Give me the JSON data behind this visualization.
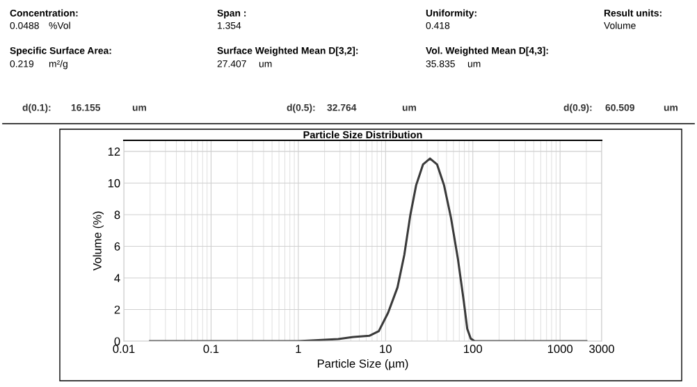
{
  "chart_data": {
    "type": "line",
    "title": "Particle Size Distribution",
    "xlabel": "Particle Size (µm)",
    "ylabel": "Volume (%)",
    "log": "x",
    "xlim": [
      0.01,
      3000
    ],
    "ylim": [
      0,
      12.7
    ],
    "xticks": [
      0.01,
      0.1,
      1,
      10,
      100,
      1000,
      3000
    ],
    "yticks": [
      0,
      2,
      4,
      6,
      8,
      10,
      12
    ],
    "grid": true,
    "marker": "none",
    "line_style": "solid",
    "series": [
      {
        "color": "#3a3a3a",
        "x": [
          0.02,
          0.1,
          1,
          2.86,
          4.27,
          6.5,
          8.36,
          10.7,
          13.7,
          16.4,
          19.2,
          22.4,
          26.9,
          32.3,
          38.9,
          46.8,
          56.2,
          67.6,
          78.7,
          86.3,
          94.6,
          105,
          300,
          2000
        ],
        "values": [
          0,
          0,
          0,
          0.13,
          0.26,
          0.34,
          0.63,
          1.8,
          3.4,
          5.46,
          7.96,
          9.86,
          11.18,
          11.55,
          11.18,
          9.86,
          7.8,
          5.17,
          2.54,
          0.78,
          0.16,
          0,
          0,
          0
        ]
      }
    ],
    "annotations": [
      "Concentration:",
      "0.0488",
      "%Vol",
      "Span :",
      "1.354",
      "Uniformity:",
      "0.418",
      "Result units:",
      "Volume",
      "Specific Surface Area:",
      "0.219",
      "m²/g",
      "Surface Weighted Mean D[3,2]:",
      "27.407",
      "um",
      "Vol. Weighted Mean D[4,3]:",
      "35.835",
      "um",
      "d(0.1):",
      "16.155",
      "um",
      "d(0.5):",
      "32.764",
      "um",
      "d(0.9):",
      "60.509",
      "um"
    ]
  }
}
